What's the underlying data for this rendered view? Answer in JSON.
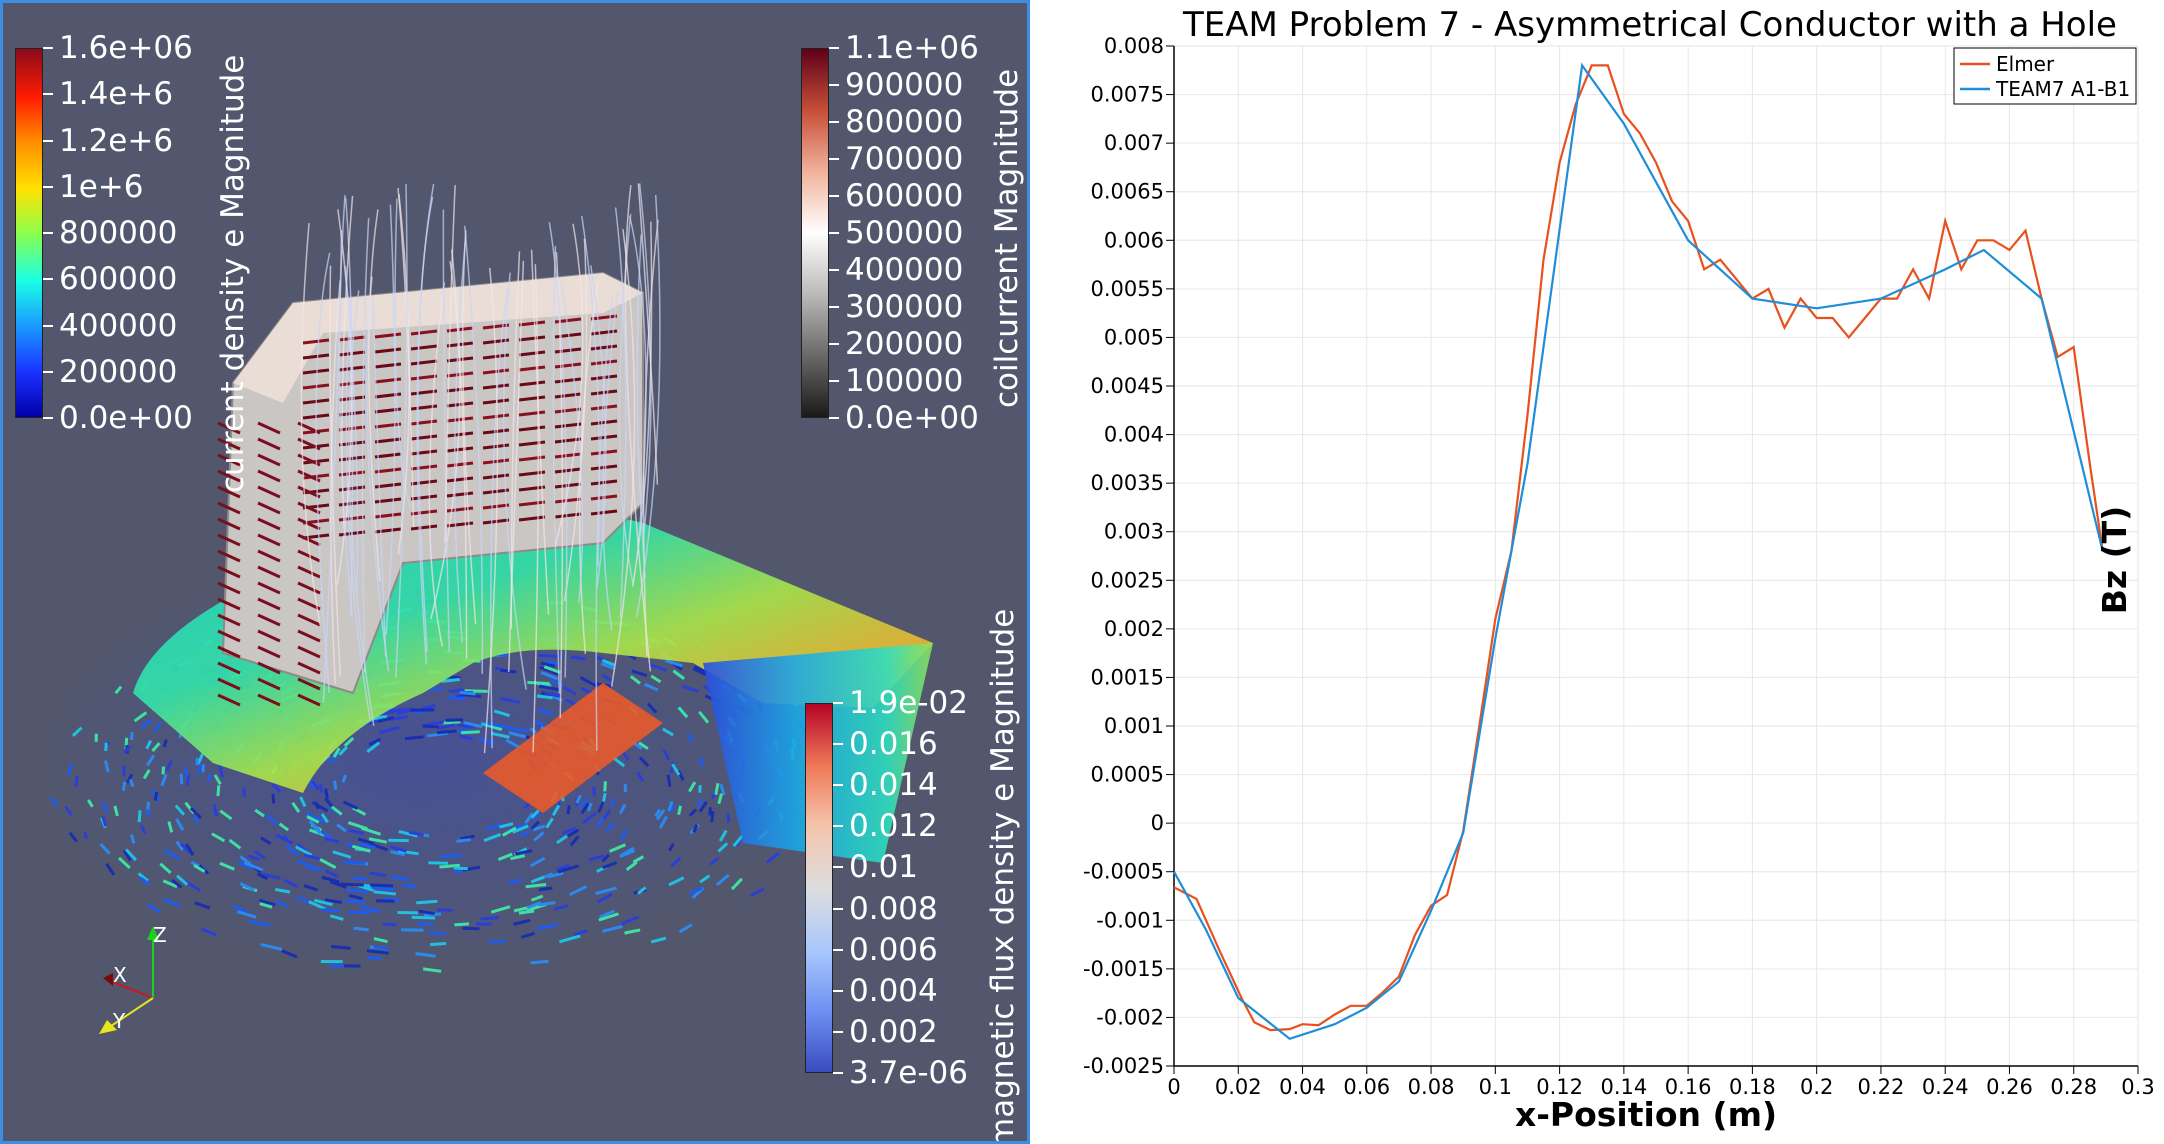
{
  "render_view": {
    "color_legends": [
      {
        "title": "current density e Magnitude",
        "labels": [
          "1.6e+06",
          "1.4e+6",
          "1.2e+6",
          "1e+6",
          "800000",
          "600000",
          "400000",
          "200000",
          "0.0e+00"
        ],
        "colormap": [
          "#8a0c1c",
          "#ff1a00",
          "#ff8c00",
          "#ffe100",
          "#8cff4a",
          "#19ffe6",
          "#1a9cff",
          "#1a30ff",
          "#0000a8"
        ]
      },
      {
        "title": "coilcurrent Magnitude",
        "labels": [
          "1.1e+06",
          "900000",
          "800000",
          "700000",
          "600000",
          "500000",
          "400000",
          "300000",
          "200000",
          "100000",
          "0.0e+00"
        ],
        "colormap": [
          "#5e0018",
          "#c8503a",
          "#f0b09a",
          "#ffffff",
          "#b8b8b8",
          "#6a6a6a",
          "#1a1a1a"
        ]
      },
      {
        "title": "magnetic flux density e Magnitude",
        "labels": [
          "1.9e-02",
          "0.016",
          "0.014",
          "0.012",
          "0.01",
          "0.008",
          "0.006",
          "0.004",
          "0.002",
          "3.7e-06"
        ],
        "colormap": [
          "#b40426",
          "#f07a5a",
          "#f5c4ac",
          "#dddddd",
          "#aac7fd",
          "#6f92f3",
          "#3b4cc0"
        ]
      }
    ],
    "orientation_axes": {
      "x": "X",
      "y": "Y",
      "z": "Z"
    }
  },
  "plot_view": {
    "chart_data": {
      "type": "line",
      "title": "TEAM Problem 7 -  Asymmetrical Conductor with a Hole",
      "xlabel": "x-Position (m)",
      "ylabel": "Bz (T)",
      "xlim": [
        0,
        0.3
      ],
      "ylim": [
        -0.0025,
        0.008
      ],
      "x_ticks": [
        "0",
        "0.02",
        "0.04",
        "0.06",
        "0.08",
        "0.1",
        "0.12",
        "0.14",
        "0.16",
        "0.18",
        "0.2",
        "0.22",
        "0.24",
        "0.26",
        "0.28",
        "0.3"
      ],
      "y_ticks": [
        "-0.0025",
        "-0.002",
        "-0.0015",
        "-0.001",
        "-0.0005",
        "0",
        "0.0005",
        "0.001",
        "0.0015",
        "0.002",
        "0.0025",
        "0.003",
        "0.0035",
        "0.004",
        "0.0045",
        "0.005",
        "0.0055",
        "0.006",
        "0.0065",
        "0.007",
        "0.0075",
        "0.008"
      ],
      "grid": true,
      "legend_position": "top-right",
      "series": [
        {
          "name": "Elmer",
          "color": "#e8501e",
          "x": [
            0,
            0.007,
            0.014,
            0.021,
            0.025,
            0.03,
            0.036,
            0.04,
            0.045,
            0.05,
            0.055,
            0.06,
            0.065,
            0.07,
            0.075,
            0.08,
            0.085,
            0.09,
            0.095,
            0.1,
            0.105,
            0.11,
            0.115,
            0.12,
            0.125,
            0.13,
            0.135,
            0.14,
            0.145,
            0.15,
            0.155,
            0.16,
            0.165,
            0.17,
            0.175,
            0.18,
            0.185,
            0.19,
            0.195,
            0.2,
            0.205,
            0.21,
            0.215,
            0.22,
            0.225,
            0.23,
            0.235,
            0.24,
            0.245,
            0.25,
            0.255,
            0.26,
            0.265,
            0.27,
            0.275,
            0.28,
            0.285,
            0.289
          ],
          "y": [
            -0.00066,
            -0.00078,
            -0.0013,
            -0.0018,
            -0.00205,
            -0.00213,
            -0.00212,
            -0.00207,
            -0.00208,
            -0.00197,
            -0.00188,
            -0.00188,
            -0.00174,
            -0.00158,
            -0.00115,
            -0.00085,
            -0.00074,
            -8e-05,
            0.001,
            0.0021,
            0.0028,
            0.0042,
            0.0058,
            0.0068,
            0.0074,
            0.0078,
            0.0078,
            0.0073,
            0.0071,
            0.0068,
            0.0064,
            0.0062,
            0.0057,
            0.0058,
            0.0056,
            0.0054,
            0.0055,
            0.0051,
            0.0054,
            0.0052,
            0.0052,
            0.005,
            0.0052,
            0.0054,
            0.0054,
            0.0057,
            0.0054,
            0.0062,
            0.0057,
            0.006,
            0.006,
            0.0059,
            0.0061,
            0.0054,
            0.0048,
            0.0049,
            0.0037,
            0.0028
          ]
        },
        {
          "name": "TEAM7 A1-B1",
          "color": "#1f8ed8",
          "x": [
            0,
            0.01,
            0.02,
            0.036,
            0.05,
            0.06,
            0.07,
            0.08,
            0.09,
            0.1,
            0.11,
            0.127,
            0.14,
            0.16,
            0.18,
            0.2,
            0.22,
            0.24,
            0.252,
            0.27,
            0.289
          ],
          "y": [
            -0.0005,
            -0.0011,
            -0.0018,
            -0.00222,
            -0.00207,
            -0.0019,
            -0.00163,
            -0.0009,
            -0.0001,
            0.0019,
            0.0037,
            0.0078,
            0.0072,
            0.006,
            0.0054,
            0.0053,
            0.0054,
            0.0057,
            0.0059,
            0.0054,
            0.0028
          ]
        }
      ]
    }
  }
}
